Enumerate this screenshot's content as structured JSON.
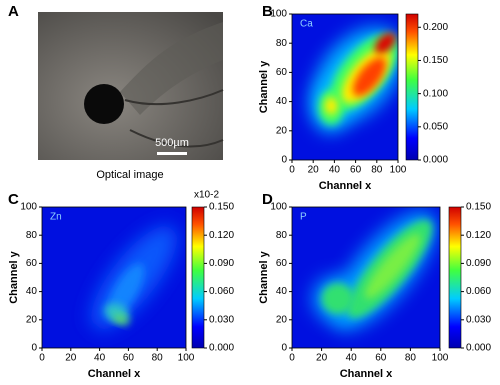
{
  "optical_image": {
    "panel_label": "A",
    "caption": "Optical image",
    "scale_bar": "500µm"
  },
  "chart_data": [
    {
      "type": "heatmap",
      "panel_label": "B",
      "annotation": "Ca",
      "x_label": "Channel x",
      "y_label": "Channel y",
      "xlim": [
        0,
        100
      ],
      "ylim": [
        0,
        100
      ],
      "xticks": [
        0,
        20,
        40,
        60,
        80,
        100
      ],
      "yticks": [
        0,
        20,
        40,
        60,
        80,
        100
      ],
      "clim": [
        0,
        0.22
      ],
      "cticks": [
        {
          "value": 0,
          "label": "0.000"
        },
        {
          "value": 0.05,
          "label": "0.050"
        },
        {
          "value": 0.1,
          "label": "0.100"
        },
        {
          "value": 0.15,
          "label": "0.150"
        },
        {
          "value": 0.2,
          "label": "0.200"
        }
      ]
    },
    {
      "type": "heatmap",
      "panel_label": "C",
      "annotation": "Zn",
      "x_label": "Channel x",
      "y_label": "Channel y",
      "scale_note": "x10-2",
      "xlim": [
        0,
        100
      ],
      "ylim": [
        0,
        100
      ],
      "xticks": [
        0,
        20,
        40,
        60,
        80,
        100
      ],
      "yticks": [
        0,
        20,
        40,
        60,
        80,
        100
      ],
      "clim": [
        0,
        0.15
      ],
      "cticks": [
        {
          "value": 0,
          "label": "0.000"
        },
        {
          "value": 0.03,
          "label": "0.030"
        },
        {
          "value": 0.06,
          "label": "0.060"
        },
        {
          "value": 0.09,
          "label": "0.090"
        },
        {
          "value": 0.12,
          "label": "0.120"
        },
        {
          "value": 0.15,
          "label": "0.150"
        }
      ]
    },
    {
      "type": "heatmap",
      "panel_label": "D",
      "annotation": "P",
      "x_label": "Channel x",
      "y_label": "Channel y",
      "xlim": [
        0,
        100
      ],
      "ylim": [
        0,
        100
      ],
      "xticks": [
        0,
        20,
        40,
        60,
        80,
        100
      ],
      "yticks": [
        0,
        20,
        40,
        60,
        80,
        100
      ],
      "clim": [
        0,
        0.15
      ],
      "cticks": [
        {
          "value": 0,
          "label": "0.000"
        },
        {
          "value": 0.03,
          "label": "0.030"
        },
        {
          "value": 0.06,
          "label": "0.060"
        },
        {
          "value": 0.09,
          "label": "0.090"
        },
        {
          "value": 0.12,
          "label": "0.120"
        },
        {
          "value": 0.15,
          "label": "0.150"
        }
      ]
    }
  ]
}
